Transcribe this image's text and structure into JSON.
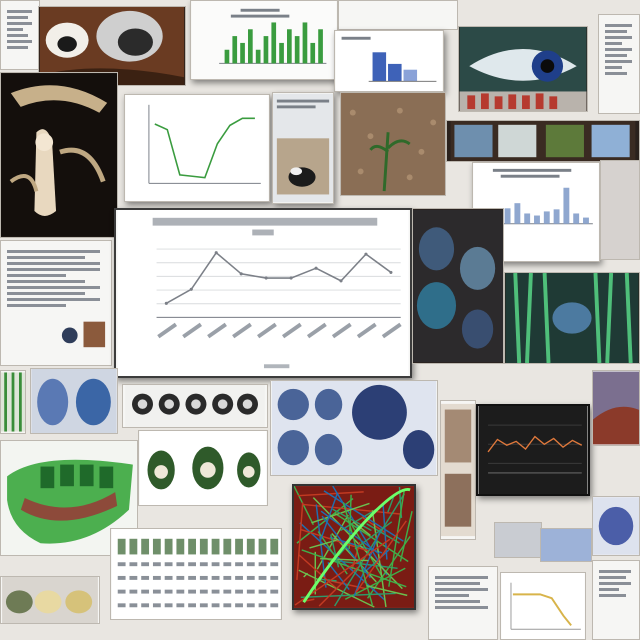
{
  "collage": {
    "tile_count": 40,
    "palette": {
      "paper": "#f6f6f4",
      "ink": "#6f7680",
      "chart_line": "#7c8088",
      "green_line": "#3a9c3f",
      "blue_accent": "#2d4fa8",
      "dark_panel": "#1c1c1c",
      "teal": "#2f7f86",
      "red_brown": "#8b3a2a"
    },
    "main_chart": {
      "type": "line",
      "series_values": [
        1,
        2,
        4.6,
        3.1,
        2.8,
        2.8,
        3.5,
        2.6,
        4.5,
        3.2
      ]
    },
    "small_chart": {
      "type": "line",
      "series_values": [
        4.2,
        3.8,
        0.6,
        0.5,
        0.4,
        2.8,
        4.1,
        4.6,
        4.6
      ]
    },
    "bar_chart_top": {
      "type": "bar",
      "values": [
        2,
        4,
        3,
        5,
        2,
        4,
        6,
        3,
        5,
        4,
        6,
        3,
        5
      ]
    },
    "bar_chart_right": {
      "type": "bar",
      "values": [
        1,
        1.5,
        2,
        1,
        0.8,
        1.2,
        1.4,
        3.5,
        1,
        0.6
      ]
    },
    "dark_chart": {
      "type": "line",
      "series_values": [
        2.2,
        3.5,
        2.9,
        3.3,
        2.5,
        3.8,
        3.0,
        3.6,
        2.7,
        3.4,
        2.9
      ]
    }
  }
}
